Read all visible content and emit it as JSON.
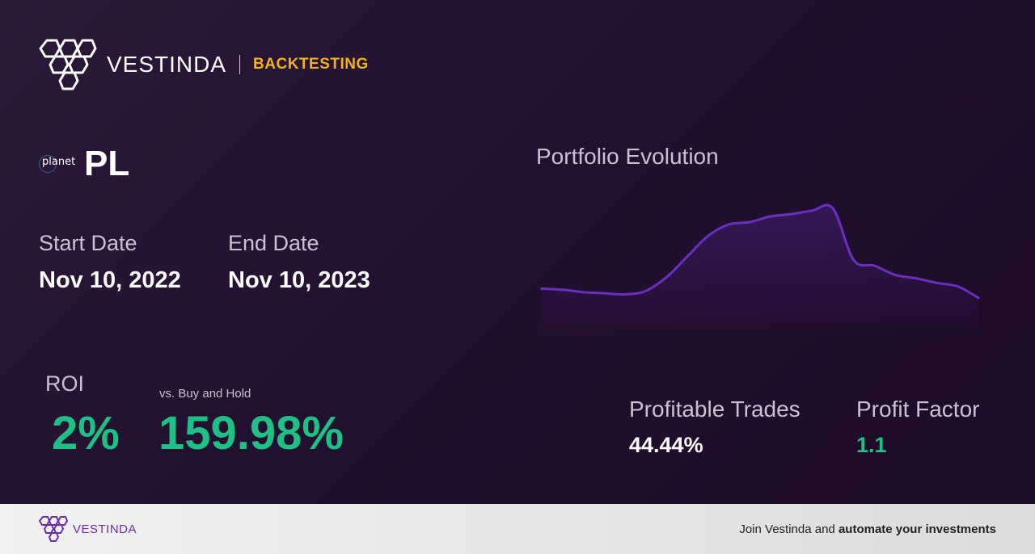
{
  "brand": {
    "name": "VESTINDA",
    "tag": "BACKTESTING",
    "accent": "#f2b21c"
  },
  "asset": {
    "ticker": "PL",
    "logo_text": "planet"
  },
  "dates": {
    "start_label": "Start Date",
    "start_value": "Nov 10, 2022",
    "end_label": "End Date",
    "end_value": "Nov 10, 2023"
  },
  "roi": {
    "label": "ROI",
    "value": "2%",
    "vs_label": "vs. Buy and Hold",
    "vs_value": "159.98%",
    "color": "#1fbf85"
  },
  "chart": {
    "title": "Portfolio Evolution",
    "line_color": "#6a2fc0"
  },
  "chart_data": {
    "type": "area",
    "series": [
      {
        "values": [
          0.3,
          0.29,
          0.27,
          0.26,
          0.25,
          0.28,
          0.4,
          0.58,
          0.76,
          0.86,
          0.88,
          0.93,
          0.95,
          0.98,
          1.0,
          0.55,
          0.5,
          0.42,
          0.39,
          0.35,
          0.32,
          0.22
        ]
      }
    ],
    "title": "Portfolio Evolution",
    "grid": false
  },
  "stats": {
    "profitable_label": "Profitable Trades",
    "profitable_value": "44.44%",
    "factor_label": "Profit Factor",
    "factor_value": "1.1"
  },
  "footer": {
    "brand": "VESTINDA",
    "cta_prefix": "Join Vestinda and ",
    "cta_bold": "automate your investments"
  }
}
